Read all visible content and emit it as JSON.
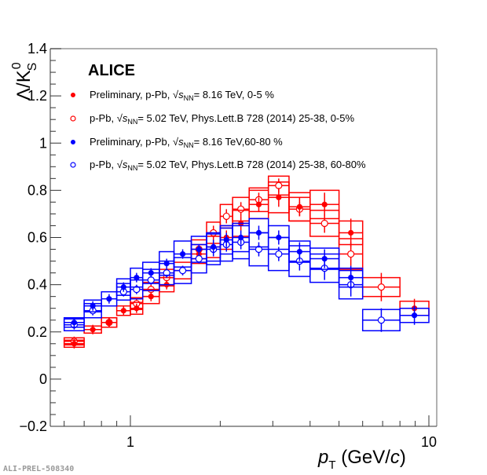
{
  "chart_data": {
    "type": "scatter",
    "title": "",
    "experiment_label": "ALICE",
    "ylabel": "Λ/K0S",
    "ylabel_parts": {
      "main": "Λ/K",
      "sup": "0",
      "sub": "S"
    },
    "xlabel": "pT (GeV/c)",
    "xlabel_parts": {
      "p": "p",
      "sub": "T",
      "rest": " (GeV/",
      "c": "c",
      "close": ")"
    },
    "xscale": "log",
    "xlim": [
      0.55,
      11.5
    ],
    "ylim": [
      -0.2,
      1.4
    ],
    "yticks": [
      "−0.2",
      "0",
      "0.2",
      "0.4",
      "0.6",
      "0.8",
      "1",
      "1.2",
      "1.4"
    ],
    "ytick_values": [
      -0.2,
      0,
      0.2,
      0.4,
      0.6,
      0.8,
      1.0,
      1.2,
      1.4
    ],
    "xticks": [
      "1",
      "10"
    ],
    "xtick_values": [
      1,
      10
    ],
    "watermark": "ALI-PREL-508340",
    "legend_position": "top-left",
    "colors": {
      "red": "#ff0000",
      "blue": "#0000ff"
    },
    "series": [
      {
        "name": "Preliminary, p-Pb, √sNN= 8.16 TeV, 0-5 %",
        "label_parts": {
          "pre": "Preliminary, p-Pb, ",
          "s": "s",
          "nn": "NN",
          "post": "= 8.16 TeV, 0-5 %"
        },
        "color": "#ff0000",
        "marker": "filled",
        "bins": [
          [
            0.6,
            0.7
          ],
          [
            0.7,
            0.8
          ],
          [
            0.8,
            0.9
          ],
          [
            0.9,
            1.0
          ],
          [
            1.0,
            1.1
          ],
          [
            1.1,
            1.25
          ],
          [
            1.25,
            1.4
          ],
          [
            1.4,
            1.6
          ],
          [
            1.6,
            1.8
          ],
          [
            1.8,
            2.0
          ],
          [
            2.0,
            2.2
          ],
          [
            2.2,
            2.5
          ],
          [
            2.5,
            2.9
          ],
          [
            2.9,
            3.4
          ],
          [
            3.4,
            4.0
          ],
          [
            4.0,
            5.0
          ],
          [
            5.0,
            6.0
          ],
          [
            8.0,
            10.0
          ]
        ],
        "values": [
          0.15,
          0.21,
          0.24,
          0.29,
          0.3,
          0.35,
          0.4,
          0.46,
          0.53,
          0.56,
          0.6,
          0.66,
          0.74,
          0.77,
          0.73,
          0.74,
          0.62,
          0.3
        ],
        "stat": [
          0.01,
          0.01,
          0.01,
          0.01,
          0.01,
          0.01,
          0.01,
          0.01,
          0.01,
          0.02,
          0.02,
          0.02,
          0.02,
          0.03,
          0.03,
          0.04,
          0.05,
          0.03
        ],
        "sys": [
          0.015,
          0.015,
          0.02,
          0.02,
          0.025,
          0.03,
          0.03,
          0.035,
          0.04,
          0.045,
          0.05,
          0.055,
          0.06,
          0.065,
          0.06,
          0.06,
          0.05,
          0.03
        ]
      },
      {
        "name": "p-Pb, √sNN= 5.02 TeV, Phys.Lett.B 728 (2014) 25-38, 0-5%",
        "label_parts": {
          "pre": "p-Pb, ",
          "s": "s",
          "nn": "NN",
          "post": "= 5.02 TeV, Phys.Lett.B 728 (2014) 25-38, 0-5%"
        },
        "color": "#ff0000",
        "marker": "open",
        "bins": [
          [
            0.6,
            0.7
          ],
          [
            0.8,
            0.9
          ],
          [
            1.0,
            1.1
          ],
          [
            1.1,
            1.25
          ],
          [
            1.25,
            1.4
          ],
          [
            1.6,
            1.8
          ],
          [
            1.8,
            2.0
          ],
          [
            2.0,
            2.2
          ],
          [
            2.2,
            2.5
          ],
          [
            2.5,
            2.9
          ],
          [
            2.9,
            3.4
          ],
          [
            3.4,
            4.0
          ],
          [
            4.0,
            5.0
          ],
          [
            5.0,
            6.0
          ],
          [
            6.0,
            8.0
          ]
        ],
        "values": [
          0.16,
          0.24,
          0.32,
          0.38,
          0.43,
          0.55,
          0.62,
          0.69,
          0.72,
          0.76,
          0.82,
          0.72,
          0.66,
          0.53,
          0.39
        ],
        "stat": [
          0.01,
          0.01,
          0.01,
          0.01,
          0.01,
          0.01,
          0.02,
          0.02,
          0.02,
          0.02,
          0.02,
          0.02,
          0.03,
          0.04,
          0.05
        ],
        "sys": [
          0.015,
          0.02,
          0.025,
          0.03,
          0.035,
          0.04,
          0.045,
          0.05,
          0.05,
          0.05,
          0.04,
          0.05,
          0.055,
          0.065,
          0.04
        ]
      },
      {
        "name": "Preliminary, p-Pb, √sNN= 8.16 TeV,60-80 %",
        "label_parts": {
          "pre": "Preliminary, p-Pb, ",
          "s": "s",
          "nn": "NN",
          "post": "= 8.16 TeV,60-80 %"
        },
        "color": "#0000ff",
        "marker": "filled",
        "bins": [
          [
            0.6,
            0.7
          ],
          [
            0.7,
            0.8
          ],
          [
            0.8,
            0.9
          ],
          [
            0.9,
            1.0
          ],
          [
            1.0,
            1.1
          ],
          [
            1.1,
            1.25
          ],
          [
            1.25,
            1.4
          ],
          [
            1.4,
            1.6
          ],
          [
            1.6,
            1.8
          ],
          [
            1.8,
            2.0
          ],
          [
            2.0,
            2.2
          ],
          [
            2.2,
            2.5
          ],
          [
            2.5,
            2.9
          ],
          [
            2.9,
            3.4
          ],
          [
            3.4,
            4.0
          ],
          [
            4.0,
            5.0
          ],
          [
            5.0,
            6.0
          ],
          [
            8.0,
            10.0
          ]
        ],
        "values": [
          0.24,
          0.31,
          0.34,
          0.39,
          0.43,
          0.45,
          0.49,
          0.53,
          0.55,
          0.56,
          0.59,
          0.6,
          0.62,
          0.6,
          0.54,
          0.51,
          0.43,
          0.27
        ],
        "stat": [
          0.01,
          0.01,
          0.01,
          0.01,
          0.01,
          0.01,
          0.01,
          0.01,
          0.01,
          0.02,
          0.02,
          0.02,
          0.02,
          0.02,
          0.03,
          0.03,
          0.04,
          0.03
        ],
        "sys": [
          0.02,
          0.025,
          0.03,
          0.035,
          0.04,
          0.045,
          0.05,
          0.055,
          0.055,
          0.06,
          0.06,
          0.06,
          0.06,
          0.05,
          0.045,
          0.045,
          0.04,
          0.03
        ]
      },
      {
        "name": "p-Pb, √sNN= 5.02 TeV, Phys.Lett.B 728 (2014) 25-38, 60-80%",
        "label_parts": {
          "pre": "p-Pb, ",
          "s": "s",
          "nn": "NN",
          "post": "= 5.02 TeV, Phys.Lett.B 728 (2014) 25-38, 60-80%"
        },
        "color": "#0000ff",
        "marker": "open",
        "bins": [
          [
            0.6,
            0.7
          ],
          [
            0.7,
            0.8
          ],
          [
            0.9,
            1.0
          ],
          [
            1.0,
            1.1
          ],
          [
            1.1,
            1.25
          ],
          [
            1.25,
            1.4
          ],
          [
            1.4,
            1.6
          ],
          [
            1.6,
            1.8
          ],
          [
            1.8,
            2.0
          ],
          [
            2.0,
            2.2
          ],
          [
            2.2,
            2.5
          ],
          [
            2.5,
            2.9
          ],
          [
            2.9,
            3.4
          ],
          [
            3.4,
            4.0
          ],
          [
            4.0,
            5.0
          ],
          [
            5.0,
            6.0
          ],
          [
            6.0,
            8.0
          ]
        ],
        "values": [
          0.23,
          0.29,
          0.37,
          0.38,
          0.42,
          0.45,
          0.46,
          0.51,
          0.55,
          0.57,
          0.58,
          0.55,
          0.53,
          0.5,
          0.47,
          0.4,
          0.25
        ],
        "stat": [
          0.01,
          0.01,
          0.01,
          0.01,
          0.01,
          0.01,
          0.01,
          0.01,
          0.02,
          0.02,
          0.02,
          0.02,
          0.02,
          0.03,
          0.04,
          0.04,
          0.04
        ],
        "sys": [
          0.025,
          0.03,
          0.035,
          0.04,
          0.045,
          0.05,
          0.055,
          0.06,
          0.065,
          0.07,
          0.07,
          0.07,
          0.07,
          0.065,
          0.06,
          0.06,
          0.045
        ]
      }
    ]
  }
}
